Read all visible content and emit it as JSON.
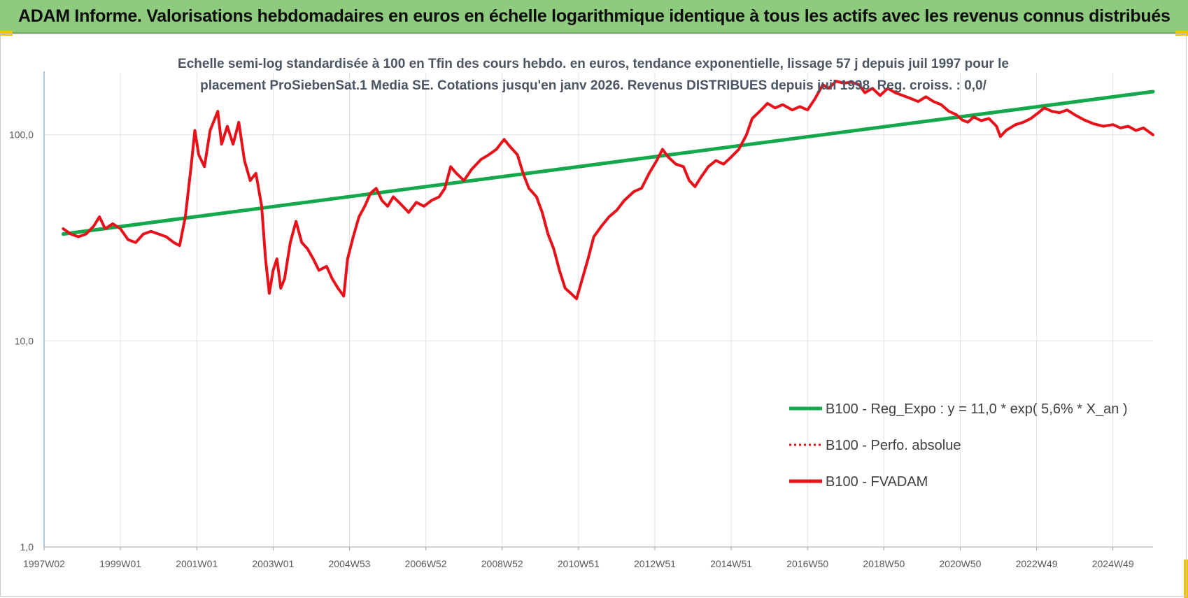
{
  "header": {
    "title": "ADAM Informe. Valorisations hebdomadaires en euros en échelle logarithmique identique à tous les actifs avec les revenus connus distribués"
  },
  "colors": {
    "banner": "#8fcb7f",
    "trend": "#13a84b",
    "perf": "#e8111a",
    "grid": "#dde3ea",
    "corner": "#f2c400"
  },
  "chart_data": {
    "type": "line",
    "title": [
      "Echelle semi-log standardisée à 100 en Tfin des cours hebdo. en euros, tendance exponentielle, lissage 57 j depuis juil 1997 pour le",
      "placement ProSiebenSat.1 Media SE. Cotations jusqu'en janv 2026. Revenus DISTRIBUES depuis juil 1998. Reg. croiss. : 0,0/"
    ],
    "y_scale": "log",
    "ylim": [
      1,
      200
    ],
    "y_ticks": [
      {
        "value": 100,
        "label": "100,0"
      },
      {
        "value": 10,
        "label": "10,0"
      },
      {
        "value": 1,
        "label": "1,0"
      }
    ],
    "xlim": [
      1997.0,
      2026.05
    ],
    "x_ticks": [
      {
        "value": 1997.0,
        "label": "1997W02"
      },
      {
        "value": 1999.0,
        "label": "1999W01"
      },
      {
        "value": 2001.0,
        "label": "2001W01"
      },
      {
        "value": 2003.0,
        "label": "2003W01"
      },
      {
        "value": 2005.0,
        "label": "2004W53"
      },
      {
        "value": 2007.0,
        "label": "2006W52"
      },
      {
        "value": 2009.0,
        "label": "2008W52"
      },
      {
        "value": 2011.0,
        "label": "2010W51"
      },
      {
        "value": 2013.0,
        "label": "2012W51"
      },
      {
        "value": 2015.0,
        "label": "2014W51"
      },
      {
        "value": 2017.0,
        "label": "2016W50"
      },
      {
        "value": 2019.0,
        "label": "2018W50"
      },
      {
        "value": 2021.0,
        "label": "2020W50"
      },
      {
        "value": 2023.0,
        "label": "2022W49"
      },
      {
        "value": 2025.0,
        "label": "2024W49"
      }
    ],
    "grid": true,
    "legend_position": "bottom-right",
    "series": [
      {
        "name": "B100 - Reg_Expo : y = 11,0 * exp( 5,6% *  X_an )",
        "style": "solid",
        "color": "#13a84b",
        "points": [
          [
            1997.5,
            33
          ],
          [
            2026.05,
            162
          ]
        ]
      },
      {
        "name": "B100 - Perfo. absolue",
        "style": "dotted",
        "color": "#e8111a",
        "points": []
      },
      {
        "name": "B100 - FVADAM",
        "style": "solid",
        "color": "#e8111a",
        "points": [
          [
            1997.5,
            35
          ],
          [
            1997.7,
            33
          ],
          [
            1997.9,
            32
          ],
          [
            1998.1,
            33
          ],
          [
            1998.3,
            36
          ],
          [
            1998.45,
            40
          ],
          [
            1998.6,
            35
          ],
          [
            1998.8,
            37
          ],
          [
            1999.0,
            35
          ],
          [
            1999.2,
            31
          ],
          [
            1999.4,
            30
          ],
          [
            1999.6,
            33
          ],
          [
            1999.8,
            34
          ],
          [
            2000.0,
            33
          ],
          [
            2000.2,
            32
          ],
          [
            2000.4,
            30
          ],
          [
            2000.55,
            29
          ],
          [
            2000.7,
            40
          ],
          [
            2000.85,
            70
          ],
          [
            2000.95,
            105
          ],
          [
            2001.05,
            80
          ],
          [
            2001.2,
            70
          ],
          [
            2001.35,
            105
          ],
          [
            2001.55,
            130
          ],
          [
            2001.65,
            90
          ],
          [
            2001.8,
            110
          ],
          [
            2001.95,
            90
          ],
          [
            2002.1,
            115
          ],
          [
            2002.25,
            75
          ],
          [
            2002.4,
            60
          ],
          [
            2002.55,
            65
          ],
          [
            2002.7,
            45
          ],
          [
            2002.8,
            25
          ],
          [
            2002.9,
            17
          ],
          [
            2003.0,
            22
          ],
          [
            2003.1,
            25
          ],
          [
            2003.2,
            18
          ],
          [
            2003.3,
            20
          ],
          [
            2003.45,
            30
          ],
          [
            2003.6,
            38
          ],
          [
            2003.75,
            30
          ],
          [
            2003.9,
            28
          ],
          [
            2004.05,
            25
          ],
          [
            2004.2,
            22
          ],
          [
            2004.4,
            23
          ],
          [
            2004.55,
            20
          ],
          [
            2004.7,
            18
          ],
          [
            2004.85,
            16.5
          ],
          [
            2004.95,
            25
          ],
          [
            2005.1,
            32
          ],
          [
            2005.25,
            40
          ],
          [
            2005.4,
            45
          ],
          [
            2005.55,
            52
          ],
          [
            2005.7,
            55
          ],
          [
            2005.85,
            48
          ],
          [
            2006.0,
            45
          ],
          [
            2006.15,
            50
          ],
          [
            2006.35,
            46
          ],
          [
            2006.55,
            42
          ],
          [
            2006.75,
            47
          ],
          [
            2006.95,
            45
          ],
          [
            2007.15,
            48
          ],
          [
            2007.35,
            50
          ],
          [
            2007.5,
            55
          ],
          [
            2007.65,
            70
          ],
          [
            2007.8,
            65
          ],
          [
            2008.0,
            60
          ],
          [
            2008.2,
            68
          ],
          [
            2008.45,
            76
          ],
          [
            2008.65,
            80
          ],
          [
            2008.85,
            85
          ],
          [
            2009.05,
            95
          ],
          [
            2009.2,
            88
          ],
          [
            2009.4,
            80
          ],
          [
            2009.55,
            65
          ],
          [
            2009.7,
            55
          ],
          [
            2009.9,
            50
          ],
          [
            2010.05,
            42
          ],
          [
            2010.2,
            33
          ],
          [
            2010.35,
            28
          ],
          [
            2010.5,
            22
          ],
          [
            2010.65,
            18
          ],
          [
            2010.8,
            17
          ],
          [
            2010.95,
            16
          ],
          [
            2011.1,
            20
          ],
          [
            2011.25,
            25
          ],
          [
            2011.4,
            32
          ],
          [
            2011.6,
            36
          ],
          [
            2011.8,
            40
          ],
          [
            2012.0,
            43
          ],
          [
            2012.2,
            48
          ],
          [
            2012.45,
            53
          ],
          [
            2012.65,
            55
          ],
          [
            2012.85,
            65
          ],
          [
            2013.05,
            75
          ],
          [
            2013.2,
            85
          ],
          [
            2013.35,
            78
          ],
          [
            2013.55,
            72
          ],
          [
            2013.75,
            70
          ],
          [
            2013.9,
            60
          ],
          [
            2014.05,
            56
          ],
          [
            2014.2,
            62
          ],
          [
            2014.4,
            70
          ],
          [
            2014.6,
            75
          ],
          [
            2014.8,
            72
          ],
          [
            2015.0,
            78
          ],
          [
            2015.2,
            85
          ],
          [
            2015.4,
            100
          ],
          [
            2015.55,
            120
          ],
          [
            2015.75,
            130
          ],
          [
            2015.95,
            142
          ],
          [
            2016.15,
            135
          ],
          [
            2016.35,
            140
          ],
          [
            2016.6,
            132
          ],
          [
            2016.8,
            137
          ],
          [
            2017.0,
            132
          ],
          [
            2017.2,
            150
          ],
          [
            2017.4,
            175
          ],
          [
            2017.55,
            168
          ],
          [
            2017.75,
            182
          ],
          [
            2017.95,
            178
          ],
          [
            2018.15,
            180
          ],
          [
            2018.35,
            175
          ],
          [
            2018.5,
            160
          ],
          [
            2018.7,
            168
          ],
          [
            2018.9,
            155
          ],
          [
            2019.1,
            168
          ],
          [
            2019.3,
            160
          ],
          [
            2019.5,
            155
          ],
          [
            2019.7,
            150
          ],
          [
            2019.9,
            145
          ],
          [
            2020.1,
            153
          ],
          [
            2020.3,
            145
          ],
          [
            2020.5,
            140
          ],
          [
            2020.7,
            130
          ],
          [
            2020.9,
            125
          ],
          [
            2021.05,
            118
          ],
          [
            2021.2,
            115
          ],
          [
            2021.35,
            122
          ],
          [
            2021.55,
            117
          ],
          [
            2021.75,
            120
          ],
          [
            2021.95,
            110
          ],
          [
            2022.05,
            98
          ],
          [
            2022.2,
            105
          ],
          [
            2022.45,
            112
          ],
          [
            2022.65,
            115
          ],
          [
            2022.85,
            120
          ],
          [
            2023.05,
            128
          ],
          [
            2023.2,
            135
          ],
          [
            2023.4,
            130
          ],
          [
            2023.6,
            128
          ],
          [
            2023.8,
            132
          ],
          [
            2024.0,
            125
          ],
          [
            2024.25,
            118
          ],
          [
            2024.5,
            113
          ],
          [
            2024.75,
            110
          ],
          [
            2025.0,
            112
          ],
          [
            2025.2,
            108
          ],
          [
            2025.4,
            110
          ],
          [
            2025.6,
            105
          ],
          [
            2025.8,
            108
          ],
          [
            2026.05,
            100
          ]
        ]
      }
    ]
  }
}
